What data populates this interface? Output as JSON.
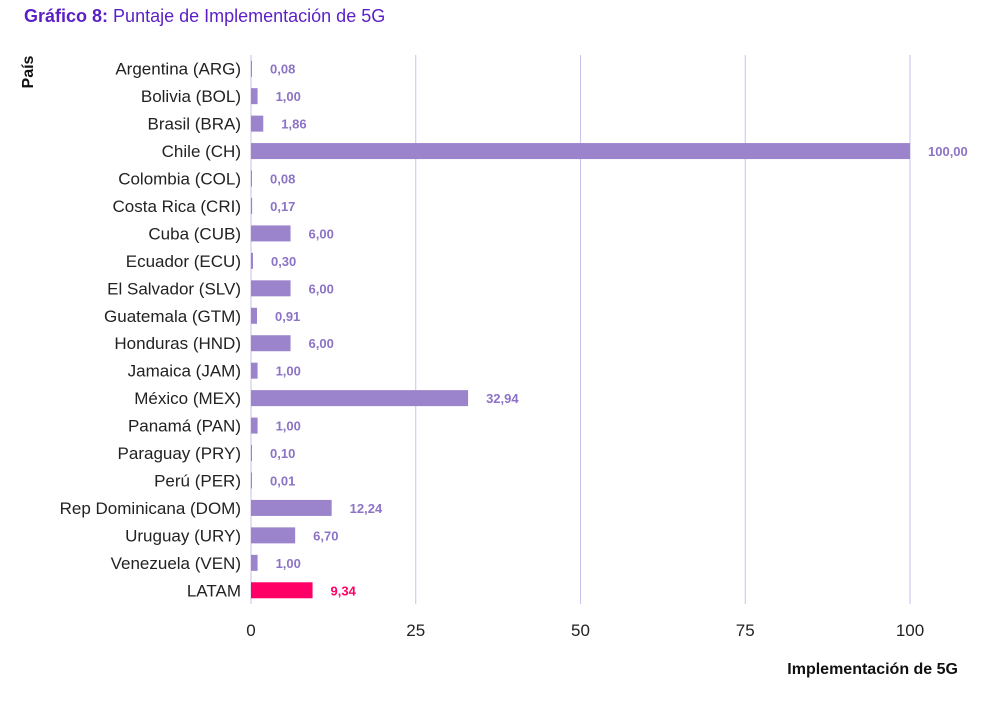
{
  "header": {
    "lead": "Gráfico 8:",
    "title": "Puntaje de Implementación de 5G"
  },
  "chart_data": {
    "type": "bar",
    "orientation": "horizontal",
    "categories": [
      "Argentina (ARG)",
      "Bolivia (BOL)",
      "Brasil (BRA)",
      "Chile (CH)",
      "Colombia (COL)",
      "Costa Rica (CRI)",
      "Cuba (CUB)",
      "Ecuador (ECU)",
      "El Salvador (SLV)",
      "Guatemala (GTM)",
      "Honduras (HND)",
      "Jamaica (JAM)",
      "México (MEX)",
      "Panamá (PAN)",
      "Paraguay (PRY)",
      "Perú (PER)",
      "Rep Dominicana (DOM)",
      "Uruguay (URY)",
      "Venezuela (VEN)",
      "LATAM"
    ],
    "values": [
      0.08,
      1.0,
      1.86,
      100.0,
      0.08,
      0.17,
      6.0,
      0.3,
      6.0,
      0.91,
      6.0,
      1.0,
      32.94,
      1.0,
      0.1,
      0.01,
      12.24,
      6.7,
      1.0,
      9.34
    ],
    "value_labels": [
      "0,08",
      "1,00",
      "1,86",
      "100,00",
      "0,08",
      "0,17",
      "6,00",
      "0,30",
      "6,00",
      "0,91",
      "6,00",
      "1,00",
      "32,94",
      "1,00",
      "0,10",
      "0,01",
      "12,24",
      "6,70",
      "1,00",
      "9,34"
    ],
    "highlight": "LATAM",
    "xlabel": "Implementación de 5G",
    "ylabel": "País",
    "xlim": [
      0,
      100
    ],
    "xticks": [
      0,
      25,
      50,
      75,
      100
    ],
    "grid": "vertical",
    "colors": {
      "bar": "#9b84cc",
      "highlight": "#ff0066",
      "label": "#8c73c6",
      "grid": "#c9c2ea"
    }
  }
}
